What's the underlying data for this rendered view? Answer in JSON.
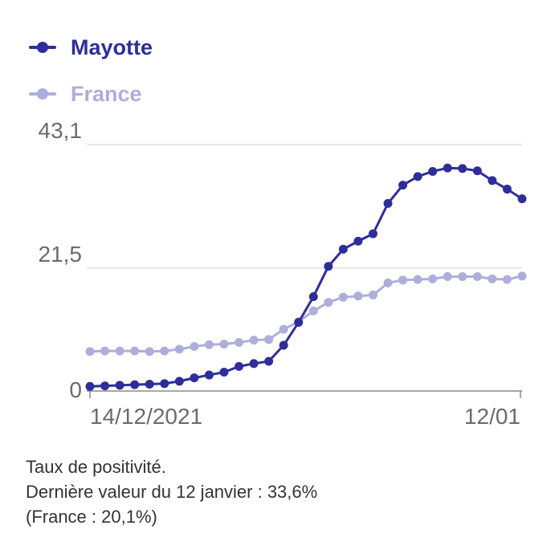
{
  "colors": {
    "mayotte": "#2e2e9a",
    "france": "#aeaedc",
    "grid": "#d0d0d0",
    "axis": "#8a8a8a",
    "tick_text": "#6b6b6b"
  },
  "chart_data": {
    "type": "line",
    "title": "",
    "xlabel": "",
    "ylabel": "",
    "ylim": [
      0,
      43.1
    ],
    "yticks": [
      "0",
      "21,5",
      "43,1"
    ],
    "ytick_values": [
      0,
      21.5,
      43.1
    ],
    "x_start_label": "14/12/2021",
    "x_end_label": "12/01",
    "grid": true,
    "legend_position": "top-left",
    "series": [
      {
        "name": "Mayotte",
        "color": "#2e2e9a",
        "values": [
          0.8,
          0.9,
          1.0,
          1.1,
          1.2,
          1.3,
          1.7,
          2.3,
          2.8,
          3.3,
          4.3,
          4.8,
          5.2,
          8.0,
          12.0,
          16.5,
          21.8,
          24.8,
          26.2,
          27.5,
          32.8,
          36.0,
          37.5,
          38.4,
          39.0,
          38.9,
          38.5,
          36.8,
          35.3,
          33.6
        ]
      },
      {
        "name": "France",
        "color": "#aeaedc",
        "values": [
          6.9,
          7.0,
          7.0,
          7.0,
          6.9,
          7.0,
          7.3,
          7.8,
          8.1,
          8.2,
          8.5,
          8.9,
          9.0,
          10.8,
          12.1,
          14.0,
          15.5,
          16.4,
          16.6,
          16.8,
          18.9,
          19.4,
          19.5,
          19.6,
          20.0,
          20.0,
          20.0,
          19.6,
          19.5,
          20.1
        ]
      }
    ]
  },
  "caption": {
    "line1": "Taux de positivité.",
    "line2": "Dernière valeur du 12 janvier : 33,6%",
    "line3": "(France : 20,1%)"
  }
}
